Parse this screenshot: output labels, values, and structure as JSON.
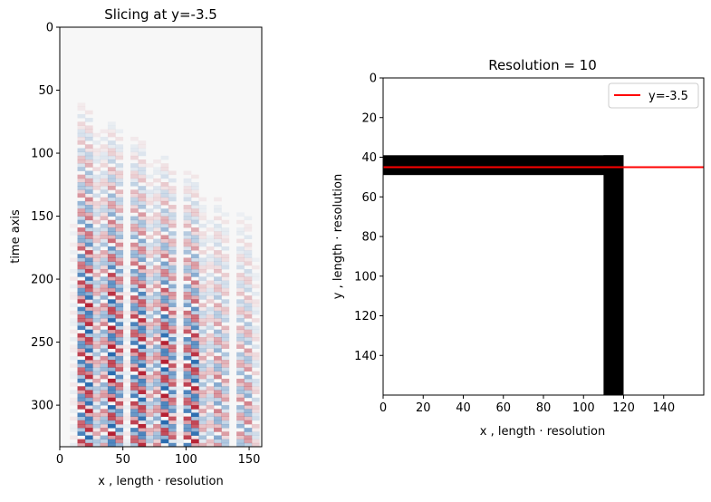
{
  "chart_data": [
    {
      "type": "heatmap",
      "title": "Slicing at y=-3.5",
      "xlabel": "x , length · resolution",
      "ylabel": "time axis",
      "xlim": [
        0,
        160
      ],
      "ylim": [
        333,
        0
      ],
      "xticks": [
        0,
        50,
        100,
        150
      ],
      "yticks": [
        0,
        50,
        100,
        150,
        200,
        250,
        300
      ],
      "colormap": "RdBu_r",
      "colormap_colors": {
        "positive": "#b2182b",
        "negative": "#2166ac",
        "zero": "#f7f7f7"
      },
      "wave_front_start": {
        "x": 8,
        "t": 45
      },
      "wave_front_end": {
        "x": 155,
        "t": 140
      },
      "wall_x": 115
    },
    {
      "type": "heatmap",
      "title": "Resolution = 10",
      "xlabel": "x , length · resolution",
      "ylabel": "y , length · resolution",
      "xlim": [
        0,
        160
      ],
      "ylim": [
        160,
        0
      ],
      "xticks": [
        0,
        20,
        40,
        60,
        80,
        100,
        120,
        140
      ],
      "yticks": [
        0,
        20,
        40,
        60,
        80,
        100,
        120,
        140
      ],
      "colormap": "binary",
      "structure": {
        "horizontal_arm": {
          "x": [
            0,
            120
          ],
          "y": [
            39,
            49
          ]
        },
        "vertical_arm": {
          "x": [
            110,
            120
          ],
          "y": [
            39,
            160
          ]
        }
      },
      "slice_line": {
        "y": 45,
        "color": "#ff0000"
      },
      "legend": {
        "entries": [
          "y=-3.5"
        ],
        "placement": "upper right"
      }
    }
  ]
}
